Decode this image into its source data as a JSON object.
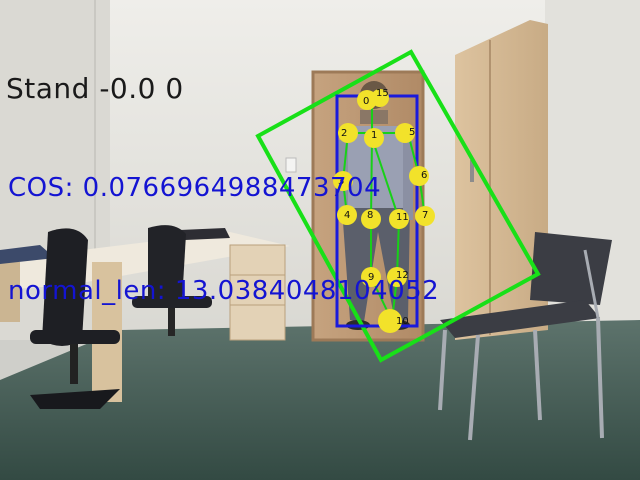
{
  "overlay": {
    "action_text": "Stand -0.0 0",
    "cos_text": "COS: 0.0766964988473704",
    "normal_len_text": "normal_len: 13.0384048104052",
    "text_color_info": "#1414d2",
    "text_color_action": "#1a1a1a"
  },
  "colors": {
    "bbox": "#1a1adc",
    "rotated_box": "#18e018",
    "joint_fill": "#f2e22a",
    "skeleton_line": "#18d018",
    "wall": "#e8e7e2",
    "floor": "#41574f"
  },
  "keypoints": {
    "labels": [
      "0",
      "15",
      "2",
      "1",
      "5",
      "3",
      "6",
      "4",
      "8",
      "11",
      "7",
      "9",
      "12",
      "10"
    ]
  },
  "icons": {
    "scene": "office-room-photo",
    "person": "standing-person"
  }
}
